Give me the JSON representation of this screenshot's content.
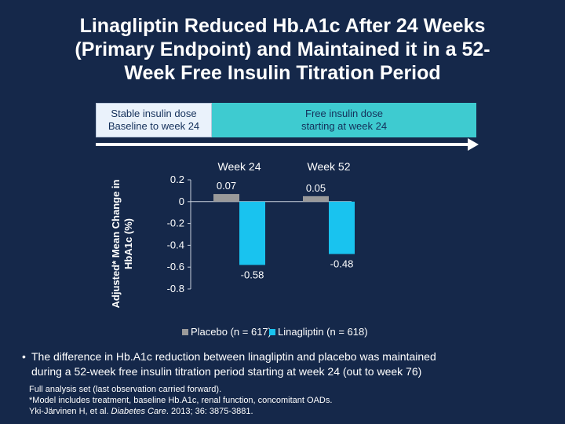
{
  "slide": {
    "title_line1": "Linagliptin Reduced Hb.A1c After 24 Weeks",
    "title_line2": "(Primary Endpoint) and Maintained it in a 52-",
    "title_line3": "Week Free Insulin Titration Period"
  },
  "phases": {
    "stable_line1": "Stable insulin dose",
    "stable_line2": "Baseline to week 24",
    "free_line1": "Free insulin dose",
    "free_line2": "starting at week 24"
  },
  "bullet": {
    "marker": "•",
    "line1": "The difference in Hb.A1c reduction between linagliptin and placebo was maintained",
    "line2": "during a 52-week free insulin titration period starting at week 24 (out to week 76)"
  },
  "footnotes": {
    "line1": "Full analysis set (last observation carried forward).",
    "line2": "*Model includes treatment, baseline Hb.A1c, renal function, concomitant OADs.",
    "line3_authors": "Yki-Järvinen H, et al. ",
    "line3_journal": "Diabetes Care",
    "line3_rest": ". 2013; 36: 3875-3881."
  },
  "colors": {
    "background": "#15284a",
    "placebo": "#9a9a9a",
    "linagliptin": "#19c3ef",
    "phase_free": "#3ecbd0",
    "phase_stable": "#eaf2fb"
  },
  "chart_data": {
    "type": "bar",
    "categories": [
      "Week 24",
      "Week 52"
    ],
    "series": [
      {
        "name": "Placebo (n = 617)",
        "values": [
          0.07,
          0.05
        ],
        "labels": [
          "0.07",
          "0.05"
        ]
      },
      {
        "name": "Linagliptin (n = 618)",
        "values": [
          -0.58,
          -0.48
        ],
        "labels": [
          "-0.58",
          "-0.48"
        ]
      }
    ],
    "ylabel_line1": "Adjusted* Mean Change in",
    "ylabel_line2": "HbA1c (%)",
    "ylim": [
      -0.8,
      0.2
    ],
    "yticks": [
      0.2,
      0,
      -0.2,
      -0.4,
      -0.6,
      -0.8
    ],
    "ytick_labels": [
      "0.2",
      "0",
      "-0.2",
      "-0.4",
      "-0.6",
      "-0.8"
    ],
    "legend_position": "bottom",
    "grid": false
  }
}
